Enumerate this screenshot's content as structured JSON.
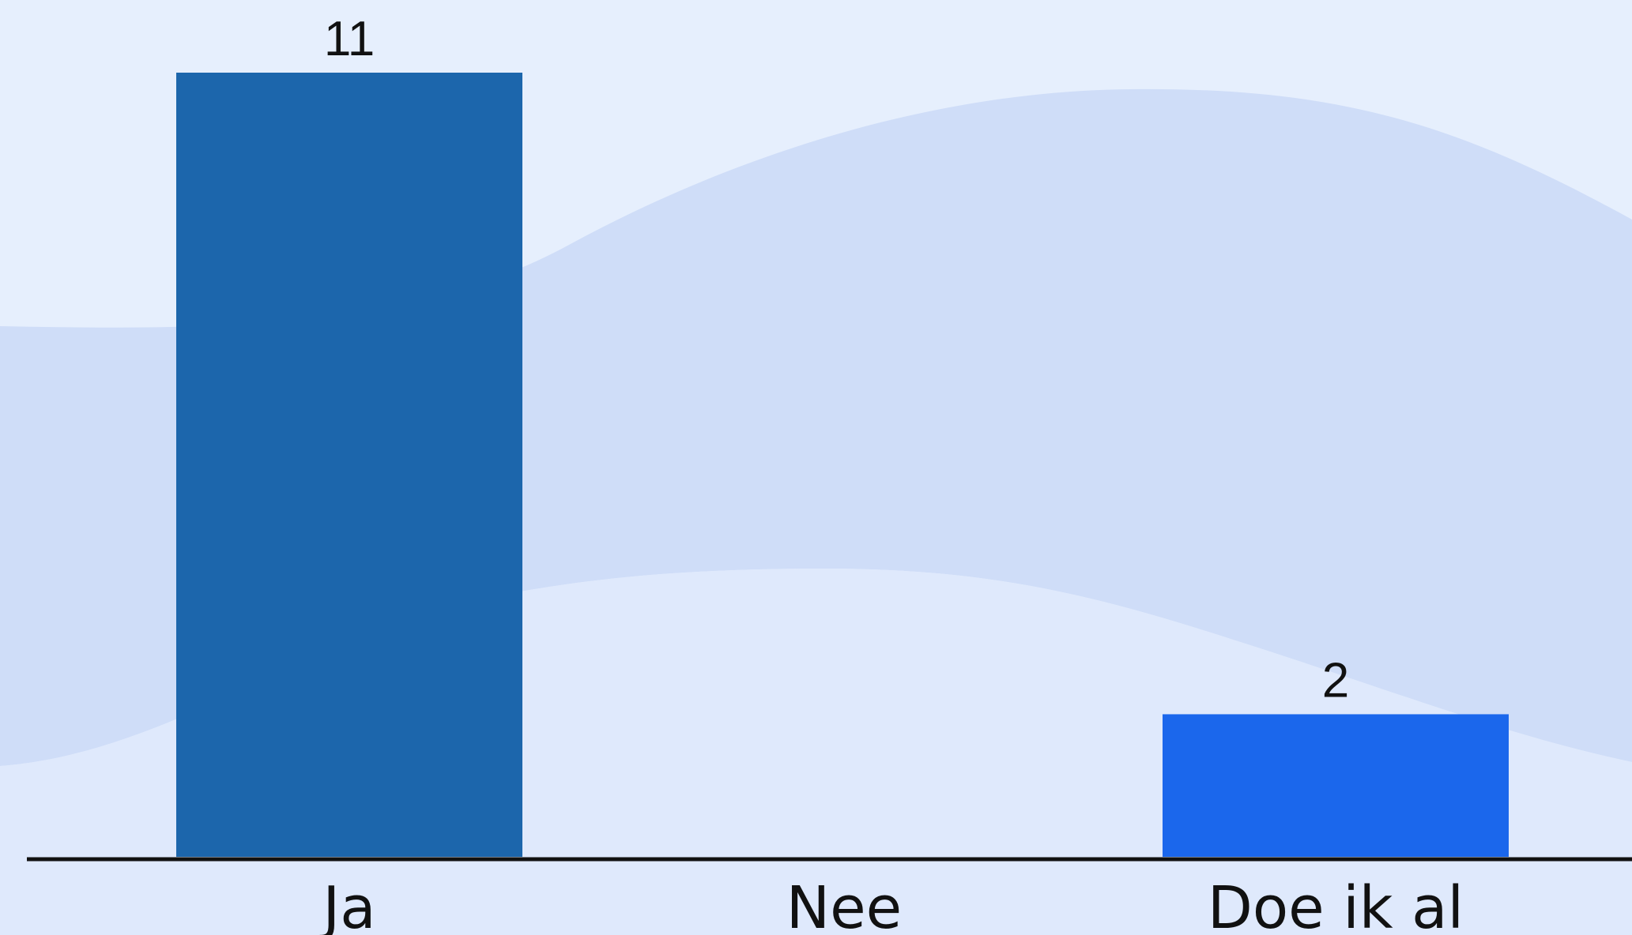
{
  "chart_data": {
    "type": "bar",
    "categories": [
      "Ja",
      "Nee",
      "Doe ik al"
    ],
    "values": [
      11,
      0,
      2
    ],
    "value_labels": [
      "11",
      "",
      "2"
    ],
    "bar_colors": [
      "#1c66ac",
      "#1c66ac",
      "#1b67ec"
    ],
    "ylim": [
      0,
      11
    ],
    "grid": false,
    "legend": "none",
    "background_color": "#e6effd",
    "wave_colors": [
      "#cfddf8",
      "#dfe9fc"
    ],
    "axis_color": "#111111"
  }
}
